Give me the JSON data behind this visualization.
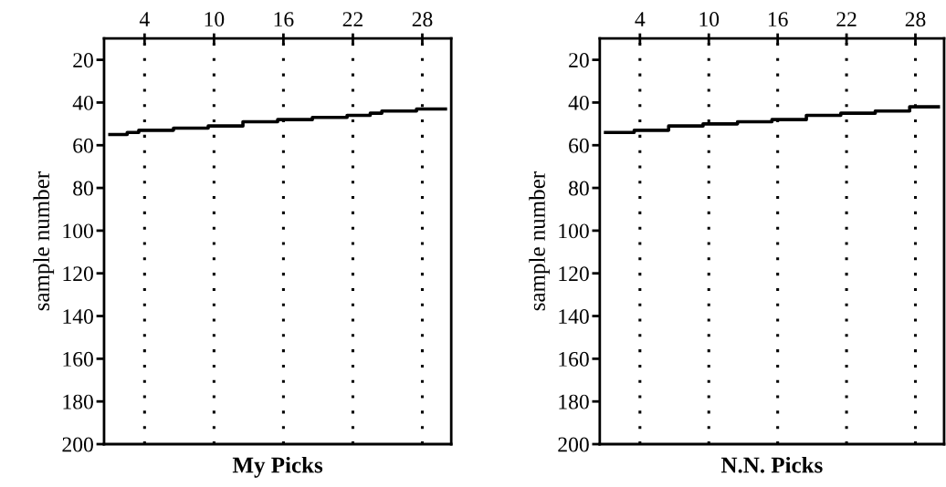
{
  "chart_data": [
    {
      "type": "step",
      "xlabel": "My Picks",
      "ylabel": "sample number",
      "xlim": [
        0.5,
        30.5
      ],
      "ylim": [
        200,
        10
      ],
      "xticks": [
        4,
        10,
        16,
        22,
        28
      ],
      "yticks": [
        20,
        40,
        60,
        80,
        100,
        120,
        140,
        160,
        180,
        200
      ],
      "grid": "x",
      "line_style": "solid",
      "marker": "none",
      "x": [
        1,
        2,
        3,
        4,
        5,
        6,
        7,
        8,
        9,
        10,
        11,
        12,
        13,
        14,
        15,
        16,
        17,
        18,
        19,
        20,
        21,
        22,
        23,
        24,
        25,
        26,
        27,
        28,
        29,
        30
      ],
      "series": [
        {
          "color": "#000000",
          "values": [
            55,
            55,
            54,
            53,
            53,
            53,
            52,
            52,
            52,
            51,
            51,
            51,
            49,
            49,
            49,
            48,
            48,
            48,
            47,
            47,
            47,
            46,
            46,
            45,
            44,
            44,
            44,
            43,
            43,
            43
          ]
        }
      ]
    },
    {
      "type": "step",
      "xlabel": "N.N. Picks",
      "ylabel": "sample number",
      "xlim": [
        0.5,
        30.5
      ],
      "ylim": [
        200,
        10
      ],
      "xticks": [
        4,
        10,
        16,
        22,
        28
      ],
      "yticks": [
        20,
        40,
        60,
        80,
        100,
        120,
        140,
        160,
        180,
        200
      ],
      "grid": "x",
      "line_style": "solid",
      "marker": "none",
      "x": [
        1,
        2,
        3,
        4,
        5,
        6,
        7,
        8,
        9,
        10,
        11,
        12,
        13,
        14,
        15,
        16,
        17,
        18,
        19,
        20,
        21,
        22,
        23,
        24,
        25,
        26,
        27,
        28,
        29,
        30
      ],
      "series": [
        {
          "color": "#000000",
          "values": [
            54,
            54,
            54,
            53,
            53,
            53,
            51,
            51,
            51,
            50,
            50,
            50,
            49,
            49,
            49,
            48,
            48,
            48,
            46,
            46,
            46,
            45,
            45,
            45,
            44,
            44,
            44,
            42,
            42,
            42
          ]
        }
      ]
    }
  ]
}
